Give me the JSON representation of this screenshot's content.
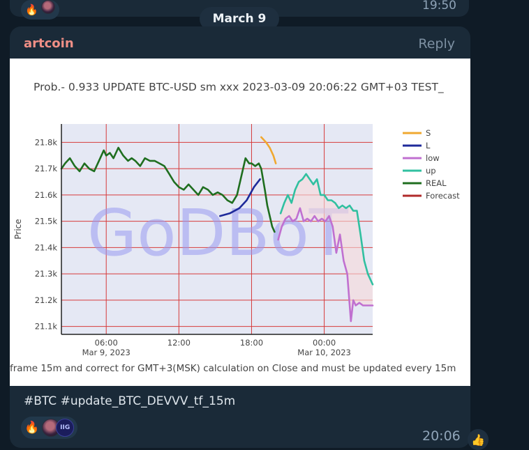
{
  "prev_message": {
    "time": "19:50"
  },
  "date_separator": "March 9",
  "message": {
    "sender": "artcoin",
    "reply_label": "Reply",
    "caption": "#BTC #update_BTC_DEVVV_tf_15m",
    "time": "20:06",
    "reactions": [
      {
        "type": "fire-emoji"
      },
      {
        "type": "user-avatars",
        "badge": "IIG"
      }
    ],
    "quick_reaction": "thumbs-up-emoji"
  },
  "chart_data": {
    "type": "line",
    "title": "Prob.- 0.933 UPDATE BTC-USD sm xxx 2023-03-09 20:06:22 GMT+03 TEST_",
    "footer": "frame 15m and correct for GMT+3(MSK) calculation on Close and must be updated every 15m",
    "watermark": "GoDBoT",
    "ylabel": "Price",
    "xlabel": "",
    "ylim": [
      21.07,
      21.87
    ],
    "xlim": [
      2.3,
      28.0
    ],
    "x_ticks": [
      {
        "x": 6,
        "label": "06:00",
        "sub": "Mar 9, 2023"
      },
      {
        "x": 12,
        "label": "12:00",
        "sub": ""
      },
      {
        "x": 18,
        "label": "18:00",
        "sub": ""
      },
      {
        "x": 24,
        "label": "00:00",
        "sub": "Mar 10, 2023"
      }
    ],
    "y_ticks": [
      {
        "v": 21.1,
        "label": "21.1k"
      },
      {
        "v": 21.2,
        "label": "21.2k"
      },
      {
        "v": 21.3,
        "label": "21.3k"
      },
      {
        "v": 21.4,
        "label": "21.4k"
      },
      {
        "v": 21.5,
        "label": "21.5k"
      },
      {
        "v": 21.6,
        "label": "21.6k"
      },
      {
        "v": 21.7,
        "label": "21.7k"
      },
      {
        "v": 21.8,
        "label": "21.8k"
      }
    ],
    "grid": true,
    "legend_position": "right",
    "series": [
      {
        "name": "S",
        "color": "#f0a830",
        "points": [
          [
            18.8,
            21.82
          ],
          [
            19.2,
            21.8
          ],
          [
            19.5,
            21.78
          ],
          [
            19.8,
            21.75
          ],
          [
            20.0,
            21.72
          ]
        ]
      },
      {
        "name": "L",
        "color": "#1e2a9a",
        "points": [
          [
            15.4,
            21.52
          ],
          [
            16.2,
            21.53
          ],
          [
            17.0,
            21.55
          ],
          [
            17.6,
            21.58
          ],
          [
            18.2,
            21.63
          ],
          [
            18.7,
            21.66
          ]
        ]
      },
      {
        "name": "low",
        "color": "#c070d0",
        "points": [
          [
            20.2,
            21.43
          ],
          [
            20.5,
            21.48
          ],
          [
            20.8,
            21.51
          ],
          [
            21.1,
            21.52
          ],
          [
            21.4,
            21.5
          ],
          [
            21.7,
            21.51
          ],
          [
            22.0,
            21.55
          ],
          [
            22.3,
            21.5
          ],
          [
            22.6,
            21.51
          ],
          [
            22.9,
            21.5
          ],
          [
            23.2,
            21.52
          ],
          [
            23.5,
            21.5
          ],
          [
            23.8,
            21.51
          ],
          [
            24.1,
            21.5
          ],
          [
            24.4,
            21.52
          ],
          [
            24.7,
            21.48
          ],
          [
            25.0,
            21.38
          ],
          [
            25.3,
            21.45
          ],
          [
            25.6,
            21.35
          ],
          [
            25.9,
            21.3
          ],
          [
            26.2,
            21.12
          ],
          [
            26.4,
            21.2
          ],
          [
            26.6,
            21.18
          ],
          [
            26.9,
            21.19
          ],
          [
            27.2,
            21.18
          ],
          [
            27.5,
            21.18
          ],
          [
            28.0,
            21.18
          ]
        ]
      },
      {
        "name": "up",
        "color": "#30c0a0",
        "points": [
          [
            20.4,
            21.53
          ],
          [
            20.7,
            21.57
          ],
          [
            21.0,
            21.6
          ],
          [
            21.3,
            21.57
          ],
          [
            21.6,
            21.62
          ],
          [
            21.9,
            21.65
          ],
          [
            22.2,
            21.66
          ],
          [
            22.5,
            21.68
          ],
          [
            22.8,
            21.66
          ],
          [
            23.1,
            21.64
          ],
          [
            23.4,
            21.66
          ],
          [
            23.7,
            21.6
          ],
          [
            24.0,
            21.6
          ],
          [
            24.3,
            21.58
          ],
          [
            24.6,
            21.58
          ],
          [
            24.9,
            21.57
          ],
          [
            25.2,
            21.55
          ],
          [
            25.5,
            21.56
          ],
          [
            25.8,
            21.55
          ],
          [
            26.1,
            21.56
          ],
          [
            26.4,
            21.54
          ],
          [
            26.7,
            21.54
          ],
          [
            27.0,
            21.45
          ],
          [
            27.3,
            21.35
          ],
          [
            27.6,
            21.3
          ],
          [
            28.0,
            21.26
          ]
        ]
      },
      {
        "name": "REAL",
        "color": "#1f6e1f",
        "points": [
          [
            2.3,
            21.7
          ],
          [
            2.6,
            21.72
          ],
          [
            3.0,
            21.74
          ],
          [
            3.4,
            21.71
          ],
          [
            3.8,
            21.69
          ],
          [
            4.2,
            21.72
          ],
          [
            4.6,
            21.7
          ],
          [
            5.0,
            21.69
          ],
          [
            5.4,
            21.73
          ],
          [
            5.8,
            21.77
          ],
          [
            6.0,
            21.75
          ],
          [
            6.3,
            21.76
          ],
          [
            6.6,
            21.74
          ],
          [
            7.0,
            21.78
          ],
          [
            7.4,
            21.75
          ],
          [
            7.8,
            21.73
          ],
          [
            8.1,
            21.74
          ],
          [
            8.4,
            21.73
          ],
          [
            8.8,
            21.71
          ],
          [
            9.2,
            21.74
          ],
          [
            9.6,
            21.73
          ],
          [
            10.0,
            21.73
          ],
          [
            10.4,
            21.72
          ],
          [
            10.8,
            21.71
          ],
          [
            11.2,
            21.68
          ],
          [
            11.6,
            21.65
          ],
          [
            12.0,
            21.63
          ],
          [
            12.4,
            21.62
          ],
          [
            12.8,
            21.64
          ],
          [
            13.2,
            21.62
          ],
          [
            13.6,
            21.6
          ],
          [
            14.0,
            21.63
          ],
          [
            14.4,
            21.62
          ],
          [
            14.8,
            21.6
          ],
          [
            15.2,
            21.61
          ],
          [
            15.6,
            21.6
          ],
          [
            16.0,
            21.58
          ],
          [
            16.4,
            21.57
          ],
          [
            16.8,
            21.6
          ],
          [
            17.0,
            21.64
          ],
          [
            17.3,
            21.7
          ],
          [
            17.5,
            21.74
          ],
          [
            17.8,
            21.72
          ],
          [
            18.0,
            21.72
          ],
          [
            18.3,
            21.71
          ],
          [
            18.6,
            21.72
          ],
          [
            18.8,
            21.7
          ],
          [
            19.1,
            21.62
          ],
          [
            19.3,
            21.56
          ],
          [
            19.5,
            21.52
          ],
          [
            19.7,
            21.48
          ],
          [
            19.9,
            21.46
          ]
        ]
      },
      {
        "name": "Forecast",
        "color": "#b02a2a",
        "points": []
      }
    ]
  }
}
